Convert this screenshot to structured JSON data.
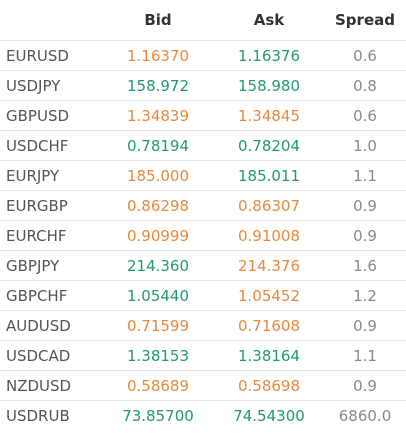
{
  "table": {
    "header": [
      "Bid",
      "Ask",
      "Spread"
    ],
    "colors": {
      "up": "#22996f",
      "down": "#e58a3c",
      "neutral": "#8a8a8a"
    },
    "rows": [
      {
        "pair": "EURUSD",
        "bid": "1.16370",
        "ask": "1.16376",
        "spread": "0.6",
        "bid_color": "down",
        "ask_color": "up"
      },
      {
        "pair": "USDJPY",
        "bid": "158.972",
        "ask": "158.980",
        "spread": "0.8",
        "bid_color": "up",
        "ask_color": "up"
      },
      {
        "pair": "GBPUSD",
        "bid": "1.34839",
        "ask": "1.34845",
        "spread": "0.6",
        "bid_color": "down",
        "ask_color": "down"
      },
      {
        "pair": "USDCHF",
        "bid": "0.78194",
        "ask": "0.78204",
        "spread": "1.0",
        "bid_color": "up",
        "ask_color": "up"
      },
      {
        "pair": "EURJPY",
        "bid": "185.000",
        "ask": "185.011",
        "spread": "1.1",
        "bid_color": "down",
        "ask_color": "up"
      },
      {
        "pair": "EURGBP",
        "bid": "0.86298",
        "ask": "0.86307",
        "spread": "0.9",
        "bid_color": "down",
        "ask_color": "down"
      },
      {
        "pair": "EURCHF",
        "bid": "0.90999",
        "ask": "0.91008",
        "spread": "0.9",
        "bid_color": "down",
        "ask_color": "down"
      },
      {
        "pair": "GBPJPY",
        "bid": "214.360",
        "ask": "214.376",
        "spread": "1.6",
        "bid_color": "up",
        "ask_color": "down"
      },
      {
        "pair": "GBPCHF",
        "bid": "1.05440",
        "ask": "1.05452",
        "spread": "1.2",
        "bid_color": "up",
        "ask_color": "down"
      },
      {
        "pair": "AUDUSD",
        "bid": "0.71599",
        "ask": "0.71608",
        "spread": "0.9",
        "bid_color": "down",
        "ask_color": "down"
      },
      {
        "pair": "USDCAD",
        "bid": "1.38153",
        "ask": "1.38164",
        "spread": "1.1",
        "bid_color": "up",
        "ask_color": "up"
      },
      {
        "pair": "NZDUSD",
        "bid": "0.58689",
        "ask": "0.58698",
        "spread": "0.9",
        "bid_color": "down",
        "ask_color": "down"
      },
      {
        "pair": "USDRUB",
        "bid": "73.85700",
        "ask": "74.54300",
        "spread": "6860.0",
        "bid_color": "up",
        "ask_color": "up"
      }
    ]
  }
}
